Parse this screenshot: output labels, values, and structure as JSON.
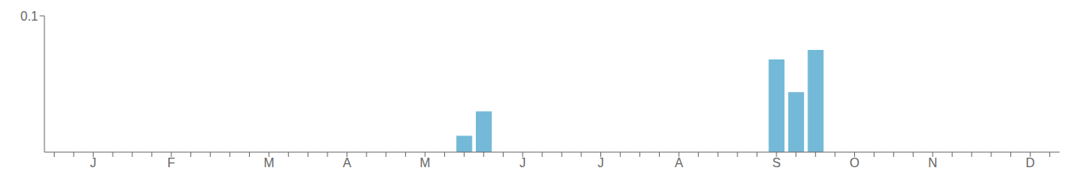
{
  "chart_data": {
    "type": "bar",
    "categories": [
      null,
      null,
      "J",
      null,
      null,
      null,
      "F",
      null,
      null,
      null,
      null,
      "M",
      null,
      null,
      null,
      "A",
      null,
      null,
      null,
      "M",
      null,
      null,
      null,
      null,
      "J",
      null,
      null,
      null,
      "J",
      null,
      null,
      null,
      "A",
      null,
      null,
      null,
      null,
      "S",
      null,
      null,
      null,
      "O",
      null,
      null,
      null,
      "N",
      null,
      null,
      null,
      null,
      "D",
      null
    ],
    "values": [
      0,
      0,
      0,
      0,
      0,
      0,
      0,
      0,
      0,
      0,
      0,
      0,
      0,
      0,
      0,
      0,
      0,
      0,
      0,
      0,
      0,
      0.012,
      0.03,
      0,
      0,
      0,
      0,
      0,
      0,
      0,
      0,
      0,
      0,
      0,
      0,
      0,
      0,
      0.068,
      0.044,
      0.075,
      0,
      0,
      0,
      0,
      0,
      0,
      0,
      0,
      0,
      0,
      0,
      0
    ],
    "color": "#74b9d8",
    "ylim": [
      0,
      0.1
    ],
    "yticks": [
      0.1
    ]
  }
}
